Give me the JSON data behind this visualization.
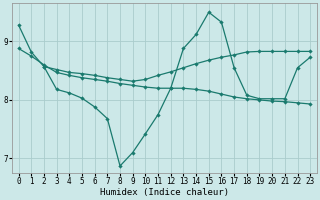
{
  "xlabel": "Humidex (Indice chaleur)",
  "bg_color": "#cce8e8",
  "grid_color": "#aacccc",
  "line_color": "#1a7a6e",
  "xlim": [
    -0.5,
    23.5
  ],
  "ylim": [
    6.75,
    9.65
  ],
  "yticks": [
    7,
    8,
    9
  ],
  "xticks": [
    0,
    1,
    2,
    3,
    4,
    5,
    6,
    7,
    8,
    9,
    10,
    11,
    12,
    13,
    14,
    15,
    16,
    17,
    18,
    19,
    20,
    21,
    22,
    23
  ],
  "line1_x": [
    0,
    1,
    2,
    3,
    4,
    5,
    6,
    7,
    8,
    9,
    10,
    11,
    12,
    13,
    14,
    15,
    16,
    17,
    18,
    19,
    20,
    21,
    22,
    23
  ],
  "line1_y": [
    9.28,
    8.82,
    8.57,
    8.18,
    8.12,
    8.03,
    7.88,
    7.68,
    6.87,
    7.1,
    7.42,
    7.75,
    8.2,
    8.88,
    9.12,
    9.5,
    9.33,
    8.55,
    8.08,
    8.02,
    8.02,
    8.02,
    8.55,
    8.73
  ],
  "line2_x": [
    0,
    1,
    2,
    3,
    4,
    5,
    6,
    7,
    8,
    9,
    10,
    11,
    12,
    13,
    14,
    15,
    16,
    17,
    18,
    19,
    20,
    21,
    22,
    23
  ],
  "line2_y": [
    8.88,
    8.75,
    8.6,
    8.47,
    8.42,
    8.38,
    8.35,
    8.32,
    8.28,
    8.25,
    8.22,
    8.2,
    8.2,
    8.2,
    8.18,
    8.15,
    8.1,
    8.05,
    8.02,
    8.0,
    7.98,
    7.97,
    7.95,
    7.93
  ],
  "line3_x": [
    2,
    3,
    4,
    5,
    6,
    7,
    8,
    9,
    10,
    11,
    12,
    13,
    14,
    15,
    16,
    17,
    18,
    19,
    20,
    21,
    22,
    23
  ],
  "line3_y": [
    8.57,
    8.52,
    8.47,
    8.45,
    8.42,
    8.38,
    8.35,
    8.32,
    8.35,
    8.42,
    8.48,
    8.55,
    8.62,
    8.68,
    8.73,
    8.77,
    8.82,
    8.83,
    8.83,
    8.83,
    8.83,
    8.83
  ]
}
